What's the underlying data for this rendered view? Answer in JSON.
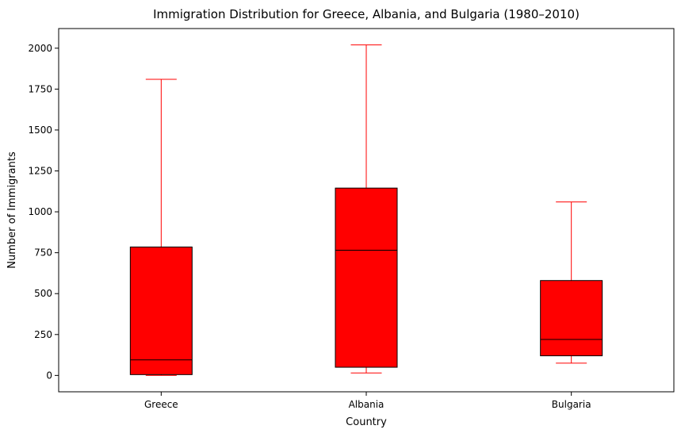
{
  "chart_data": {
    "type": "boxplot",
    "title": "Immigration Distribution for Greece, Albania, and Bulgaria (1980–2010)",
    "xlabel": "Country",
    "ylabel": "Number of Immigrants",
    "categories": [
      "Greece",
      "Albania",
      "Bulgaria"
    ],
    "ylim": [
      -100,
      2120
    ],
    "yticks": [
      0,
      250,
      500,
      750,
      1000,
      1250,
      1500,
      1750,
      2000
    ],
    "grid": false,
    "colors": {
      "box_fill": "#ff0000",
      "box_edge": "#000000",
      "median": "#000000",
      "whisker": "#ff0000",
      "cap": "#ff0000"
    },
    "boxes": [
      {
        "name": "Greece",
        "min": 0,
        "q1": 5,
        "median": 95,
        "q3": 785,
        "max": 1810
      },
      {
        "name": "Albania",
        "min": 15,
        "q1": 50,
        "median": 765,
        "q3": 1145,
        "max": 2020
      },
      {
        "name": "Bulgaria",
        "min": 75,
        "q1": 120,
        "median": 220,
        "q3": 580,
        "max": 1060
      }
    ]
  }
}
